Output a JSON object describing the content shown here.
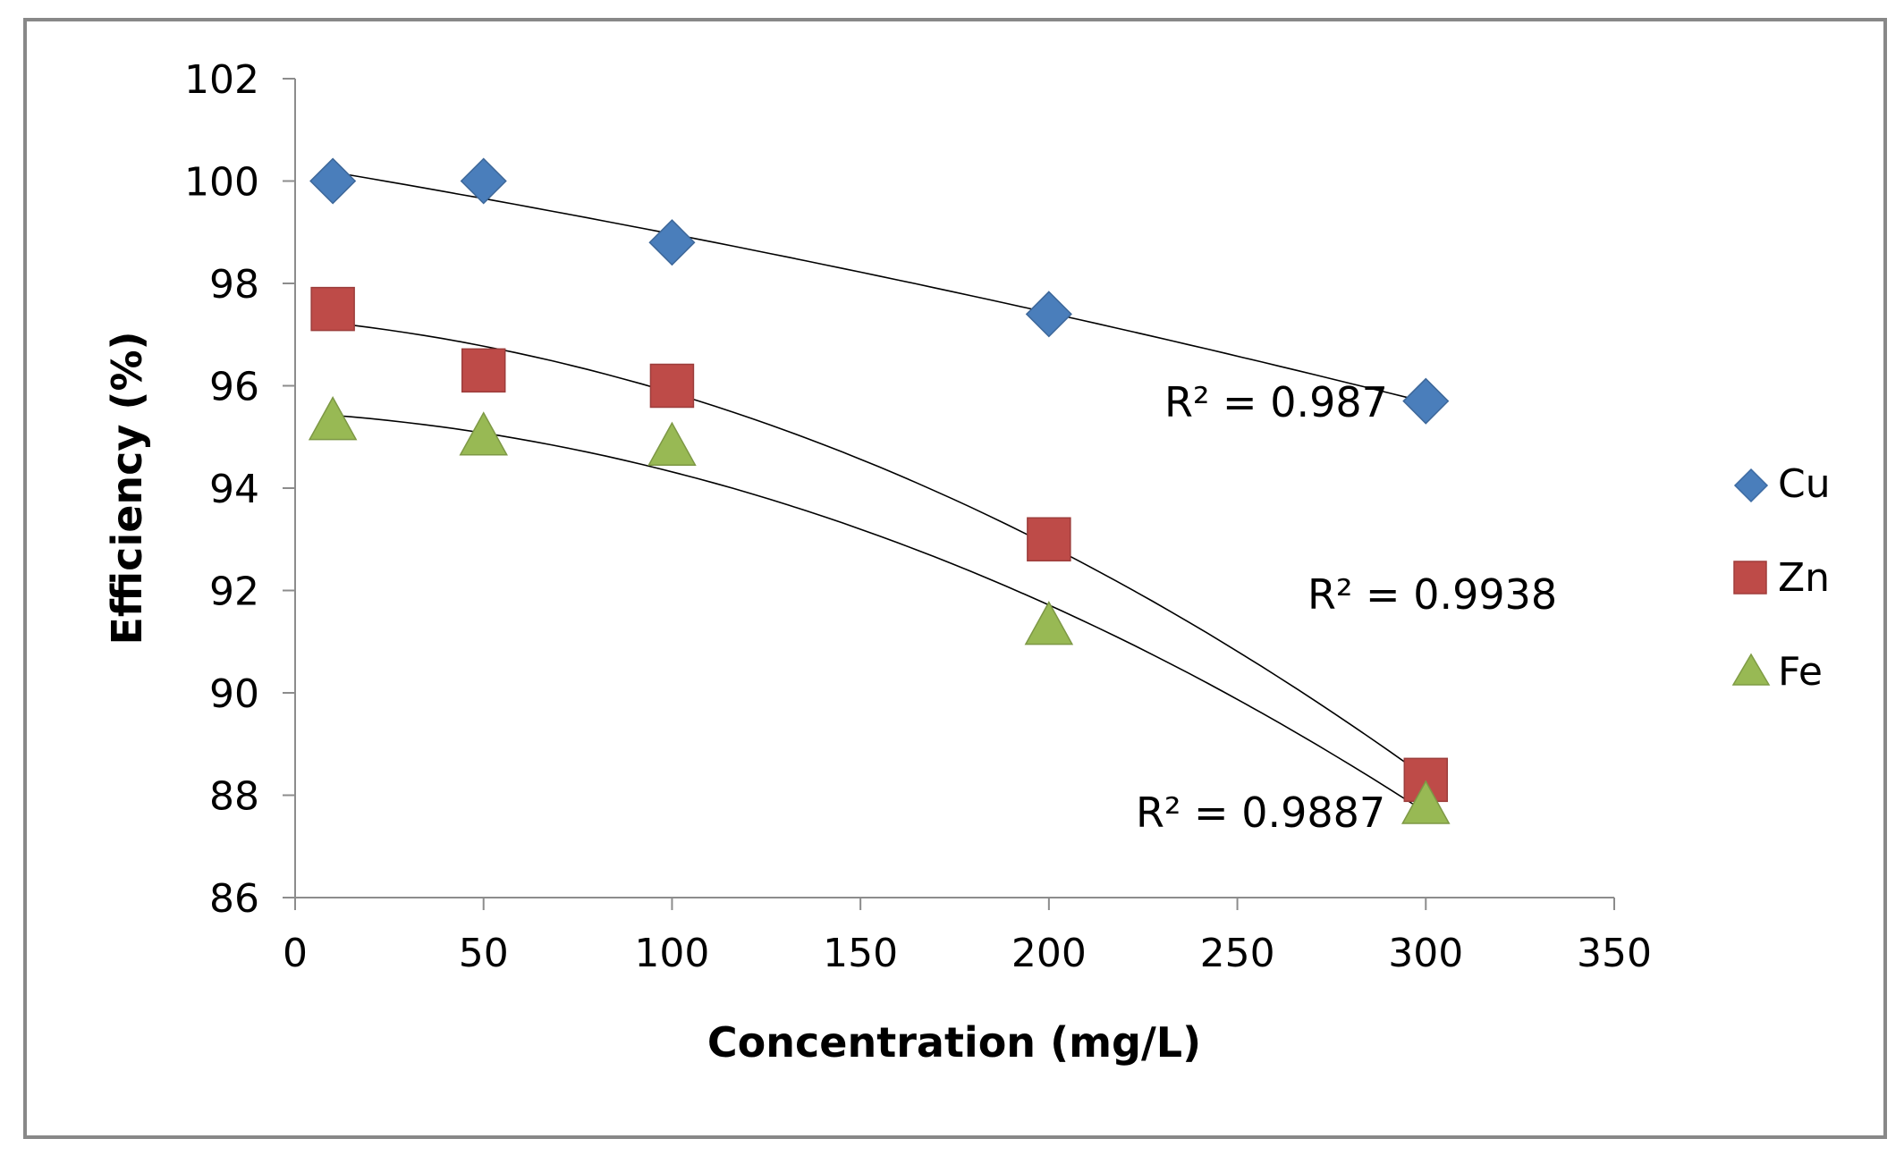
{
  "chart_data": {
    "type": "scatter",
    "title": "",
    "xlabel": "Concentration (mg/L)",
    "ylabel": "Efficiency (%)",
    "xlim": [
      0,
      350
    ],
    "ylim": [
      86,
      102
    ],
    "xticks": [
      0,
      50,
      100,
      150,
      200,
      250,
      300,
      350
    ],
    "yticks": [
      86,
      88,
      90,
      92,
      94,
      96,
      98,
      100,
      102
    ],
    "grid": false,
    "legend_position": "right",
    "series": [
      {
        "name": "Cu",
        "marker": "diamond",
        "color": "#4a7ebb",
        "x": [
          10,
          50,
          100,
          200,
          300
        ],
        "y": [
          100.0,
          100.0,
          98.8,
          97.4,
          95.7
        ],
        "trendline": "polynomial-2",
        "r2_label": "R² = 0.987"
      },
      {
        "name": "Zn",
        "marker": "square",
        "color": "#be4b48",
        "x": [
          10,
          50,
          100,
          200,
          300
        ],
        "y": [
          97.5,
          96.3,
          96.0,
          93.0,
          88.3
        ],
        "trendline": "polynomial-2",
        "r2_label": "R² = 0.9938"
      },
      {
        "name": "Fe",
        "marker": "triangle",
        "color": "#98b954",
        "x": [
          10,
          50,
          100,
          200,
          300
        ],
        "y": [
          95.3,
          95.0,
          94.8,
          91.3,
          87.8
        ],
        "trendline": "polynomial-2",
        "r2_label": "R² = 0.9887"
      }
    ]
  }
}
